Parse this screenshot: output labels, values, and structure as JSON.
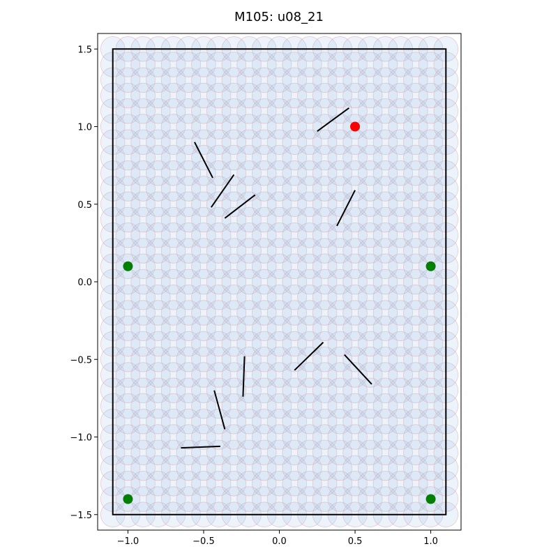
{
  "chart_data": {
    "type": "scatter",
    "title": "M105: u08_21",
    "xlabel": "",
    "ylabel": "",
    "xlim": [
      -1.2,
      1.2
    ],
    "ylim": [
      -1.6,
      1.6
    ],
    "grid": false,
    "x_ticks": [
      -1.0,
      -0.5,
      0.0,
      0.5,
      1.0
    ],
    "y_ticks": [
      -1.5,
      -1.0,
      -0.5,
      0.0,
      0.5,
      1.0,
      1.5
    ],
    "x_tick_labels": [
      "−1.0",
      "−0.5",
      "0.0",
      "0.5",
      "1.0"
    ],
    "y_tick_labels": [
      "−1.5",
      "−1.0",
      "−0.5",
      "0.0",
      "0.5",
      "1.0",
      "1.5"
    ],
    "boundary": {
      "x": [
        -1.1,
        1.1
      ],
      "y": [
        -1.5,
        1.5
      ],
      "color": "#000000"
    },
    "coverage_circles": {
      "radius": 0.08,
      "x_start": -1.1,
      "x_step": 0.1,
      "x_count": 23,
      "y_start": -1.5,
      "y_step": 0.1,
      "y_count": 31,
      "fill_color": "#aac7e6",
      "edge_color": "#d9a5b3"
    },
    "segments": [
      {
        "x1": 0.25,
        "y1": 0.97,
        "x2": 0.46,
        "y2": 1.12
      },
      {
        "x1": -0.56,
        "y1": 0.9,
        "x2": -0.44,
        "y2": 0.67
      },
      {
        "x1": -0.45,
        "y1": 0.48,
        "x2": -0.3,
        "y2": 0.69
      },
      {
        "x1": -0.36,
        "y1": 0.41,
        "x2": -0.16,
        "y2": 0.56
      },
      {
        "x1": 0.38,
        "y1": 0.36,
        "x2": 0.5,
        "y2": 0.59
      },
      {
        "x1": 0.1,
        "y1": -0.57,
        "x2": 0.29,
        "y2": -0.39
      },
      {
        "x1": 0.43,
        "y1": -0.47,
        "x2": 0.61,
        "y2": -0.66
      },
      {
        "x1": -0.23,
        "y1": -0.48,
        "x2": -0.24,
        "y2": -0.74
      },
      {
        "x1": -0.43,
        "y1": -0.7,
        "x2": -0.36,
        "y2": -0.95
      },
      {
        "x1": -0.65,
        "y1": -1.07,
        "x2": -0.39,
        "y2": -1.06
      }
    ],
    "segment_color": "#000000",
    "points": [
      {
        "x": 0.5,
        "y": 1.0,
        "color": "#ff0000"
      },
      {
        "x": -1.0,
        "y": 0.1,
        "color": "#008000"
      },
      {
        "x": 1.0,
        "y": 0.1,
        "color": "#008000"
      },
      {
        "x": -1.0,
        "y": -1.4,
        "color": "#008000"
      },
      {
        "x": 1.0,
        "y": -1.4,
        "color": "#008000"
      }
    ]
  }
}
